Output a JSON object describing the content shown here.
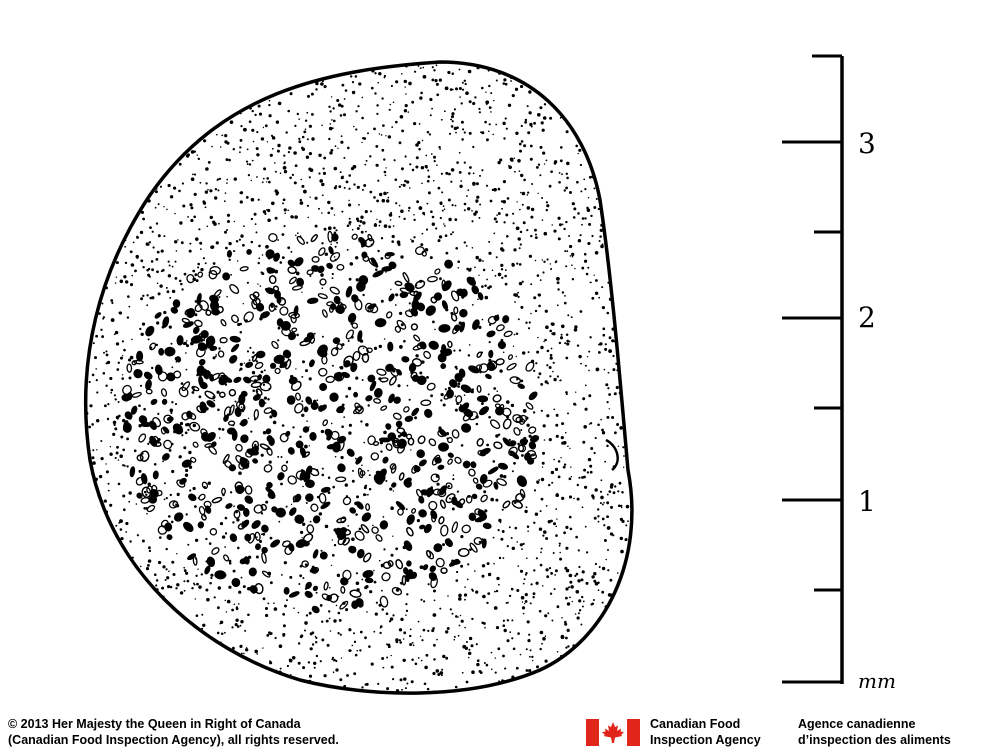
{
  "ruler": {
    "major_labels": [
      "1",
      "2",
      "3"
    ],
    "unit": "mm"
  },
  "footer": {
    "copyright_line1": "© 2013 Her Majesty the Queen in Right of Canada",
    "copyright_line2": "(Canadian Food Inspection Agency), all rights reserved.",
    "agency_en_line1": "Canadian Food",
    "agency_en_line2": "Inspection Agency",
    "agency_fr_line1": "Agence canadienne",
    "agency_fr_line2": "d’inspection des aliments"
  },
  "colors": {
    "ink": "#000000",
    "flag_red": "#e1251b",
    "background": "#ffffff"
  },
  "icons": {
    "flag": "canada-flag-icon"
  }
}
